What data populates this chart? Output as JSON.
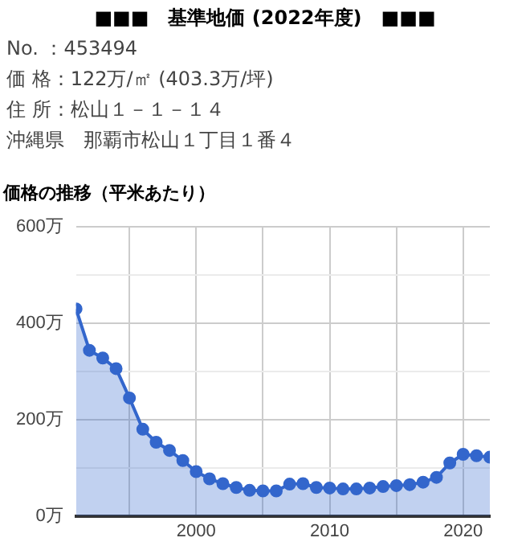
{
  "chart_data": {
    "type": "area",
    "title": "価格の推移（平米あたり）",
    "annotations": [
      "■■■　基準地価 (2022年度)　■■■",
      "No. ：453494",
      "価 格：122万/㎡ (403.3万/坪)",
      "住 所：松山１－１－１４",
      "沖縄県　那覇市松山１丁目１番４"
    ],
    "x": [
      1991,
      1992,
      1993,
      1994,
      1995,
      1996,
      1997,
      1998,
      1999,
      2000,
      2001,
      2002,
      2003,
      2004,
      2005,
      2006,
      2007,
      2008,
      2009,
      2010,
      2011,
      2012,
      2013,
      2014,
      2015,
      2016,
      2017,
      2018,
      2019,
      2020,
      2021,
      2022
    ],
    "values": [
      430,
      344,
      328,
      306,
      245,
      180,
      153,
      136,
      115,
      92,
      77,
      67,
      59,
      53,
      52,
      52,
      66,
      67,
      59,
      58,
      56,
      56,
      58,
      61,
      63,
      65,
      70,
      80,
      110,
      128,
      125,
      122
    ],
    "color": "#3366cc",
    "xlim": [
      1991,
      2022
    ],
    "xticks": [
      {
        "value": 1995,
        "label": null
      },
      2000,
      {
        "value": 2005,
        "label": null
      },
      2010,
      {
        "value": 2015,
        "label": null
      },
      2020
    ],
    "ylim": [
      0,
      600
    ],
    "yticks": [
      {
        "value": 0,
        "label": "0万"
      },
      {
        "value": 100,
        "label": null
      },
      {
        "value": 200,
        "label": "200万"
      },
      {
        "value": 300,
        "label": null
      },
      {
        "value": 400,
        "label": "400万"
      },
      {
        "value": 500,
        "label": null
      },
      {
        "value": 600,
        "label": "600万"
      }
    ],
    "grid": true,
    "legend": false,
    "marker": "circle",
    "line_style": "solid"
  }
}
